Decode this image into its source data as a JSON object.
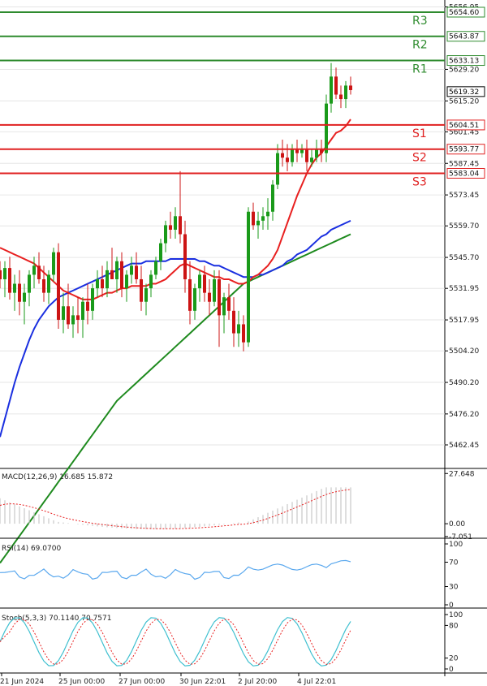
{
  "chart_data": {
    "type": "candlestick",
    "price_panel": {
      "ylim": [
        5452.0,
        5660.0
      ],
      "price_ticks": [
        5656.95,
        5629.2,
        5615.2,
        5601.45,
        5587.45,
        5573.45,
        5559.7,
        5545.7,
        5531.95,
        5517.95,
        5504.2,
        5490.2,
        5476.2,
        5462.45
      ],
      "current_price": "5619.32",
      "levels": [
        {
          "name": "R3",
          "value": 5654.6,
          "label": "5654.60",
          "color": "#2e8b2e"
        },
        {
          "name": "R2",
          "value": 5643.87,
          "label": "5643.87",
          "color": "#2e8b2e"
        },
        {
          "name": "R1",
          "value": 5633.13,
          "label": "5633.13",
          "color": "#2e8b2e"
        },
        {
          "name": "S1",
          "value": 5604.51,
          "label": "5604.51",
          "color": "#e02020"
        },
        {
          "name": "S2",
          "value": 5593.77,
          "label": "5593.77",
          "color": "#e02020"
        },
        {
          "name": "S3",
          "value": 5583.04,
          "label": "5583.04",
          "color": "#e02020"
        }
      ],
      "candles": [
        [
          5540,
          5544,
          5532,
          5536
        ],
        [
          5536,
          5544,
          5528,
          5541
        ],
        [
          5541,
          5546,
          5527,
          5530
        ],
        [
          5530,
          5538,
          5522,
          5534
        ],
        [
          5534,
          5540,
          5520,
          5526
        ],
        [
          5526,
          5534,
          5516,
          5530
        ],
        [
          5530,
          5540,
          5524,
          5538
        ],
        [
          5538,
          5546,
          5532,
          5542
        ],
        [
          5542,
          5548,
          5534,
          5536
        ],
        [
          5536,
          5542,
          5526,
          5530
        ],
        [
          5530,
          5540,
          5525,
          5538
        ],
        [
          5538,
          5550,
          5535,
          5548
        ],
        [
          5548,
          5552,
          5514,
          5518
        ],
        [
          5518,
          5530,
          5512,
          5524
        ],
        [
          5524,
          5534,
          5514,
          5516
        ],
        [
          5516,
          5524,
          5510,
          5520
        ],
        [
          5520,
          5528,
          5512,
          5518
        ],
        [
          5518,
          5528,
          5510,
          5526
        ],
        [
          5526,
          5534,
          5516,
          5522
        ],
        [
          5522,
          5534,
          5518,
          5532
        ],
        [
          5532,
          5540,
          5528,
          5536
        ],
        [
          5536,
          5542,
          5528,
          5532
        ],
        [
          5532,
          5544,
          5528,
          5540
        ],
        [
          5540,
          5550,
          5536,
          5536
        ],
        [
          5536,
          5546,
          5530,
          5544
        ],
        [
          5544,
          5548,
          5528,
          5532
        ],
        [
          5532,
          5540,
          5526,
          5538
        ],
        [
          5538,
          5546,
          5534,
          5542
        ],
        [
          5542,
          5548,
          5534,
          5536
        ],
        [
          5536,
          5542,
          5522,
          5526
        ],
        [
          5526,
          5534,
          5520,
          5532
        ],
        [
          5532,
          5540,
          5528,
          5538
        ],
        [
          5538,
          5546,
          5536,
          5544
        ],
        [
          5544,
          5554,
          5540,
          5552
        ],
        [
          5552,
          5562,
          5548,
          5560
        ],
        [
          5560,
          5566,
          5554,
          5558
        ],
        [
          5558,
          5568,
          5554,
          5564
        ],
        [
          5564,
          5584,
          5552,
          5556
        ],
        [
          5556,
          5562,
          5530,
          5536
        ],
        [
          5536,
          5544,
          5516,
          5522
        ],
        [
          5522,
          5534,
          5518,
          5532
        ],
        [
          5532,
          5540,
          5526,
          5538
        ],
        [
          5538,
          5542,
          5526,
          5530
        ],
        [
          5530,
          5536,
          5520,
          5526
        ],
        [
          5526,
          5540,
          5524,
          5536
        ],
        [
          5536,
          5540,
          5506,
          5520
        ],
        [
          5520,
          5530,
          5512,
          5528
        ],
        [
          5528,
          5534,
          5518,
          5522
        ],
        [
          5522,
          5528,
          5506,
          5512
        ],
        [
          5512,
          5522,
          5506,
          5516
        ],
        [
          5516,
          5520,
          5504,
          5508
        ],
        [
          5508,
          5568,
          5506,
          5566
        ],
        [
          5566,
          5570,
          5558,
          5560
        ],
        [
          5560,
          5566,
          5554,
          5562
        ],
        [
          5562,
          5568,
          5558,
          5564
        ],
        [
          5564,
          5572,
          5558,
          5566
        ],
        [
          5566,
          5580,
          5562,
          5578
        ],
        [
          5578,
          5596,
          5576,
          5592
        ],
        [
          5592,
          5598,
          5586,
          5590
        ],
        [
          5590,
          5596,
          5584,
          5588
        ],
        [
          5588,
          5596,
          5586,
          5594
        ],
        [
          5594,
          5598,
          5588,
          5592
        ],
        [
          5592,
          5596,
          5590,
          5594
        ],
        [
          5594,
          5598,
          5584,
          5588
        ],
        [
          5588,
          5594,
          5586,
          5590
        ],
        [
          5590,
          5598,
          5588,
          5594
        ],
        [
          5594,
          5598,
          5588,
          5592
        ],
        [
          5592,
          5618,
          5588,
          5614
        ],
        [
          5614,
          5632,
          5610,
          5626
        ],
        [
          5626,
          5630,
          5616,
          5618
        ],
        [
          5618,
          5622,
          5612,
          5616
        ],
        [
          5616,
          5624,
          5612,
          5622
        ],
        [
          5622,
          5626,
          5618,
          5620
        ]
      ],
      "ma_short": [
        5550,
        5549,
        5548,
        5547,
        5546,
        5545,
        5544,
        5543,
        5541,
        5539,
        5537,
        5535,
        5533,
        5531,
        5530,
        5529,
        5528,
        5527,
        5527,
        5527,
        5528,
        5529,
        5530,
        5530,
        5531,
        5532,
        5532,
        5533,
        5533,
        5533,
        5533,
        5534,
        5534,
        5535,
        5536,
        5538,
        5540,
        5542,
        5543,
        5542,
        5541,
        5540,
        5539,
        5538,
        5537,
        5537,
        5536,
        5536,
        5535,
        5534,
        5534,
        5535,
        5537,
        5538,
        5540,
        5542,
        5545,
        5549,
        5555,
        5561,
        5567,
        5573,
        5578,
        5583,
        5587,
        5590,
        5592,
        5595,
        5598,
        5601,
        5602,
        5604,
        5607
      ],
      "ma_mid": [
        5466,
        5474,
        5482,
        5490,
        5497,
        5503,
        5509,
        5514,
        5518,
        5521,
        5524,
        5526,
        5528,
        5529,
        5530,
        5531,
        5532,
        5533,
        5534,
        5535,
        5536,
        5537,
        5538,
        5539,
        5540,
        5541,
        5542,
        5543,
        5543,
        5543,
        5544,
        5544,
        5544,
        5544,
        5544,
        5545,
        5545,
        5545,
        5545,
        5545,
        5545,
        5544,
        5544,
        5543,
        5542,
        5542,
        5541,
        5540,
        5539,
        5538,
        5537,
        5537,
        5537,
        5538,
        5538,
        5539,
        5540,
        5541,
        5542,
        5544,
        5545,
        5547,
        5548,
        5549,
        5551,
        5553,
        5555,
        5556,
        5558,
        5559,
        5560,
        5561,
        5562
      ],
      "ma_long": [
        5410,
        5413,
        5416,
        5419,
        5422,
        5425,
        5428,
        5431,
        5434,
        5437,
        5440,
        5443,
        5446,
        5449,
        5452,
        5455,
        5458,
        5461,
        5464,
        5467,
        5470,
        5473,
        5476,
        5479,
        5482,
        5484,
        5486,
        5488,
        5490,
        5492,
        5494,
        5496,
        5498,
        5500,
        5502,
        5504,
        5506,
        5508,
        5510,
        5512,
        5514,
        5516,
        5518,
        5520,
        5522,
        5524,
        5526,
        5528,
        5530,
        5532,
        5534,
        5535,
        5536,
        5537,
        5538,
        5539,
        5540,
        5541,
        5542,
        5543,
        5544,
        5545,
        5546,
        5547,
        5548,
        5549,
        5550,
        5551,
        5552,
        5553,
        5554,
        5555,
        5556
      ]
    },
    "macd_panel": {
      "label": "MACD(12,26,9) 16.685 15.872",
      "ticks": [
        27.648,
        0.0,
        -7.051
      ],
      "ylim": [
        -8,
        30
      ]
    },
    "rsi_panel": {
      "label": "RSI(14) 69.0700",
      "ticks": [
        100,
        70,
        30,
        0
      ],
      "ylim": [
        0,
        100
      ]
    },
    "stoch_panel": {
      "label": "Stoch(5,3,3) 70.1140 70.7571",
      "ticks": [
        100,
        80,
        20,
        0
      ],
      "ylim": [
        0,
        100
      ]
    },
    "x_tick_labels": [
      "21 Jun 2024",
      "25 Jun 00:00",
      "27 Jun 00:00",
      "30 Jun 22:01",
      "2 Jul 20:00",
      "4 Jul 22:01"
    ],
    "colors": {
      "bull": "#1a9a1a",
      "bear": "#cc1414",
      "ma_short": "#e82020",
      "ma_mid": "#1a2fe0",
      "ma_long": "#1e8a1e",
      "macd_hist": "#c8c8c8",
      "macd_signal": "#e82020",
      "rsi": "#5aa8ee",
      "stoch_k": "#40c0d0",
      "stoch_d": "#e82020",
      "grid": "#e6e6e6",
      "axis_text": "#222222"
    }
  }
}
